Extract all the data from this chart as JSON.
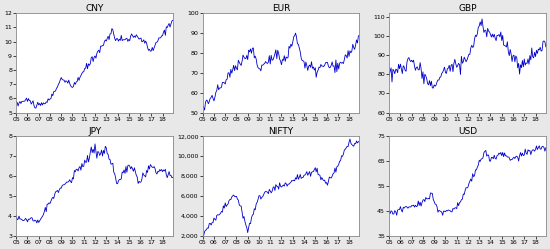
{
  "subplots": [
    {
      "title": "CNY",
      "ylim": [
        5,
        12
      ],
      "yticks": [
        5,
        6,
        7,
        8,
        9,
        10,
        11,
        12
      ],
      "xticks": [
        "05",
        "06",
        "07",
        "08",
        "09",
        "10",
        "11",
        "12",
        "13",
        "14",
        "15",
        "16",
        "17",
        "18"
      ]
    },
    {
      "title": "EUR",
      "ylim": [
        50,
        100
      ],
      "yticks": [
        50,
        60,
        70,
        80,
        90,
        100
      ],
      "xticks": [
        "05",
        "06",
        "07",
        "08",
        "09",
        "10",
        "11",
        "12",
        "13",
        "14",
        "15",
        "16",
        "17",
        "18"
      ]
    },
    {
      "title": "GBP",
      "ylim": [
        60,
        112
      ],
      "yticks": [
        60,
        70,
        80,
        90,
        100,
        110
      ],
      "xticks": [
        "05",
        "06",
        "07",
        "08",
        "09",
        "10",
        "11",
        "12",
        "13",
        "14",
        "15",
        "16",
        "17",
        "18"
      ]
    },
    {
      "title": "JPY",
      "ylim": [
        3,
        8
      ],
      "yticks": [
        3,
        4,
        5,
        6,
        7,
        8
      ],
      "xticks": [
        "05",
        "06",
        "07",
        "08",
        "09",
        "10",
        "11",
        "12",
        "13",
        "14",
        "15",
        "16",
        "17",
        "18"
      ]
    },
    {
      "title": "NIFTY",
      "ylim": [
        2000,
        12000
      ],
      "yticks": [
        2000,
        4000,
        6000,
        8000,
        10000,
        12000
      ],
      "xticks": [
        "05",
        "06",
        "07",
        "08",
        "09",
        "10",
        "11",
        "12",
        "13",
        "14",
        "15",
        "16",
        "17",
        "18"
      ]
    },
    {
      "title": "USD",
      "ylim": [
        35,
        75
      ],
      "yticks": [
        35,
        45,
        55,
        65,
        75
      ],
      "xticks": [
        "05",
        "06",
        "07",
        "08",
        "09",
        "10",
        "11",
        "12",
        "13",
        "14",
        "15",
        "16",
        "17",
        "18"
      ]
    }
  ],
  "line_color": "#0000CC",
  "background_color": "#ffffff",
  "figure_facecolor": "#e8e8e8",
  "spine_color": "#888888"
}
